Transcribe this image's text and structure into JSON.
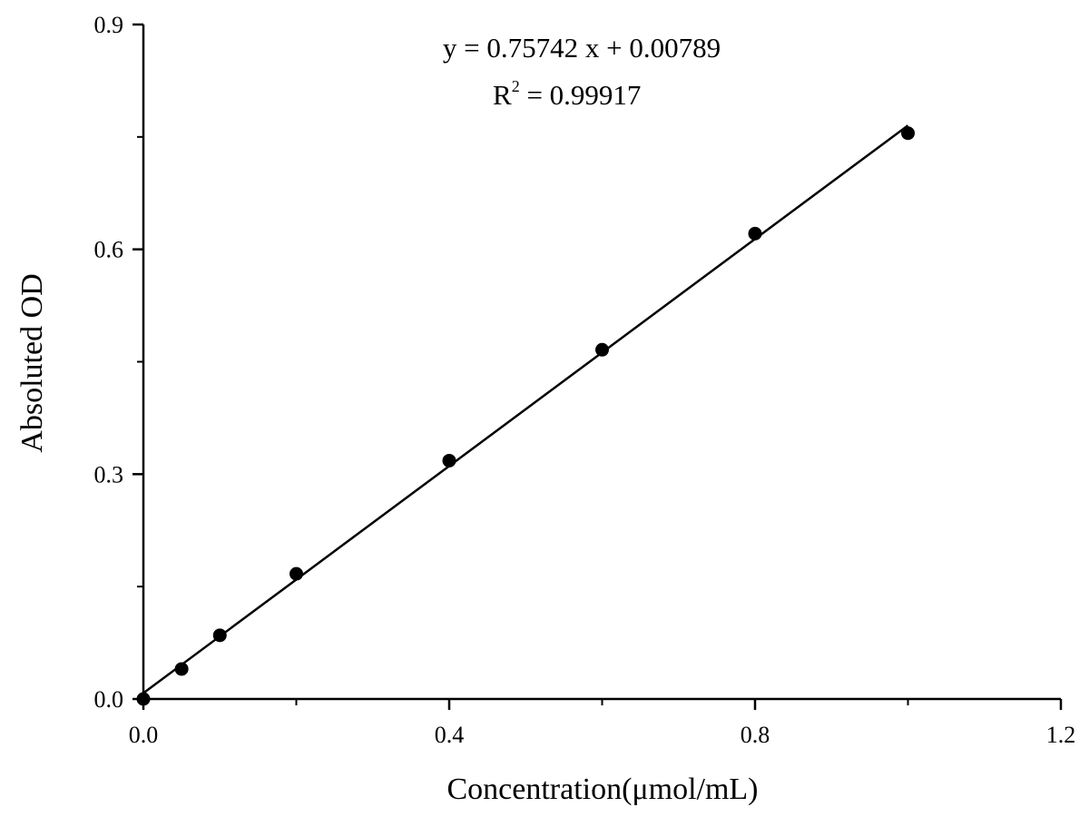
{
  "chart_data": {
    "type": "scatter",
    "xlabel": "Concentration(μmol/mL)",
    "ylabel": "Absoluted OD",
    "xlim": [
      0,
      1.2
    ],
    "ylim": [
      0,
      0.9
    ],
    "xticks": [
      "0.0",
      "0.4",
      "0.8",
      "1.2"
    ],
    "yticks": [
      "0.0",
      "0.3",
      "0.6",
      "0.9"
    ],
    "grid": false,
    "series": [
      {
        "x": [
          0,
          0.05,
          0.1,
          0.2,
          0.4,
          0.6,
          0.8,
          1.0
        ],
        "y": [
          0.0,
          0.04,
          0.085,
          0.167,
          0.318,
          0.466,
          0.621,
          0.755
        ],
        "color": "#000000"
      }
    ],
    "fit": {
      "slope": 0.75742,
      "intercept": 0.00789,
      "x_range": [
        0,
        1.0
      ],
      "color": "#000000"
    },
    "annotations": {
      "equation": "y = 0.75742 x + 0.00789",
      "r2_label": "R",
      "r2_sup": "2",
      "r2_value": " = 0.99917"
    }
  }
}
